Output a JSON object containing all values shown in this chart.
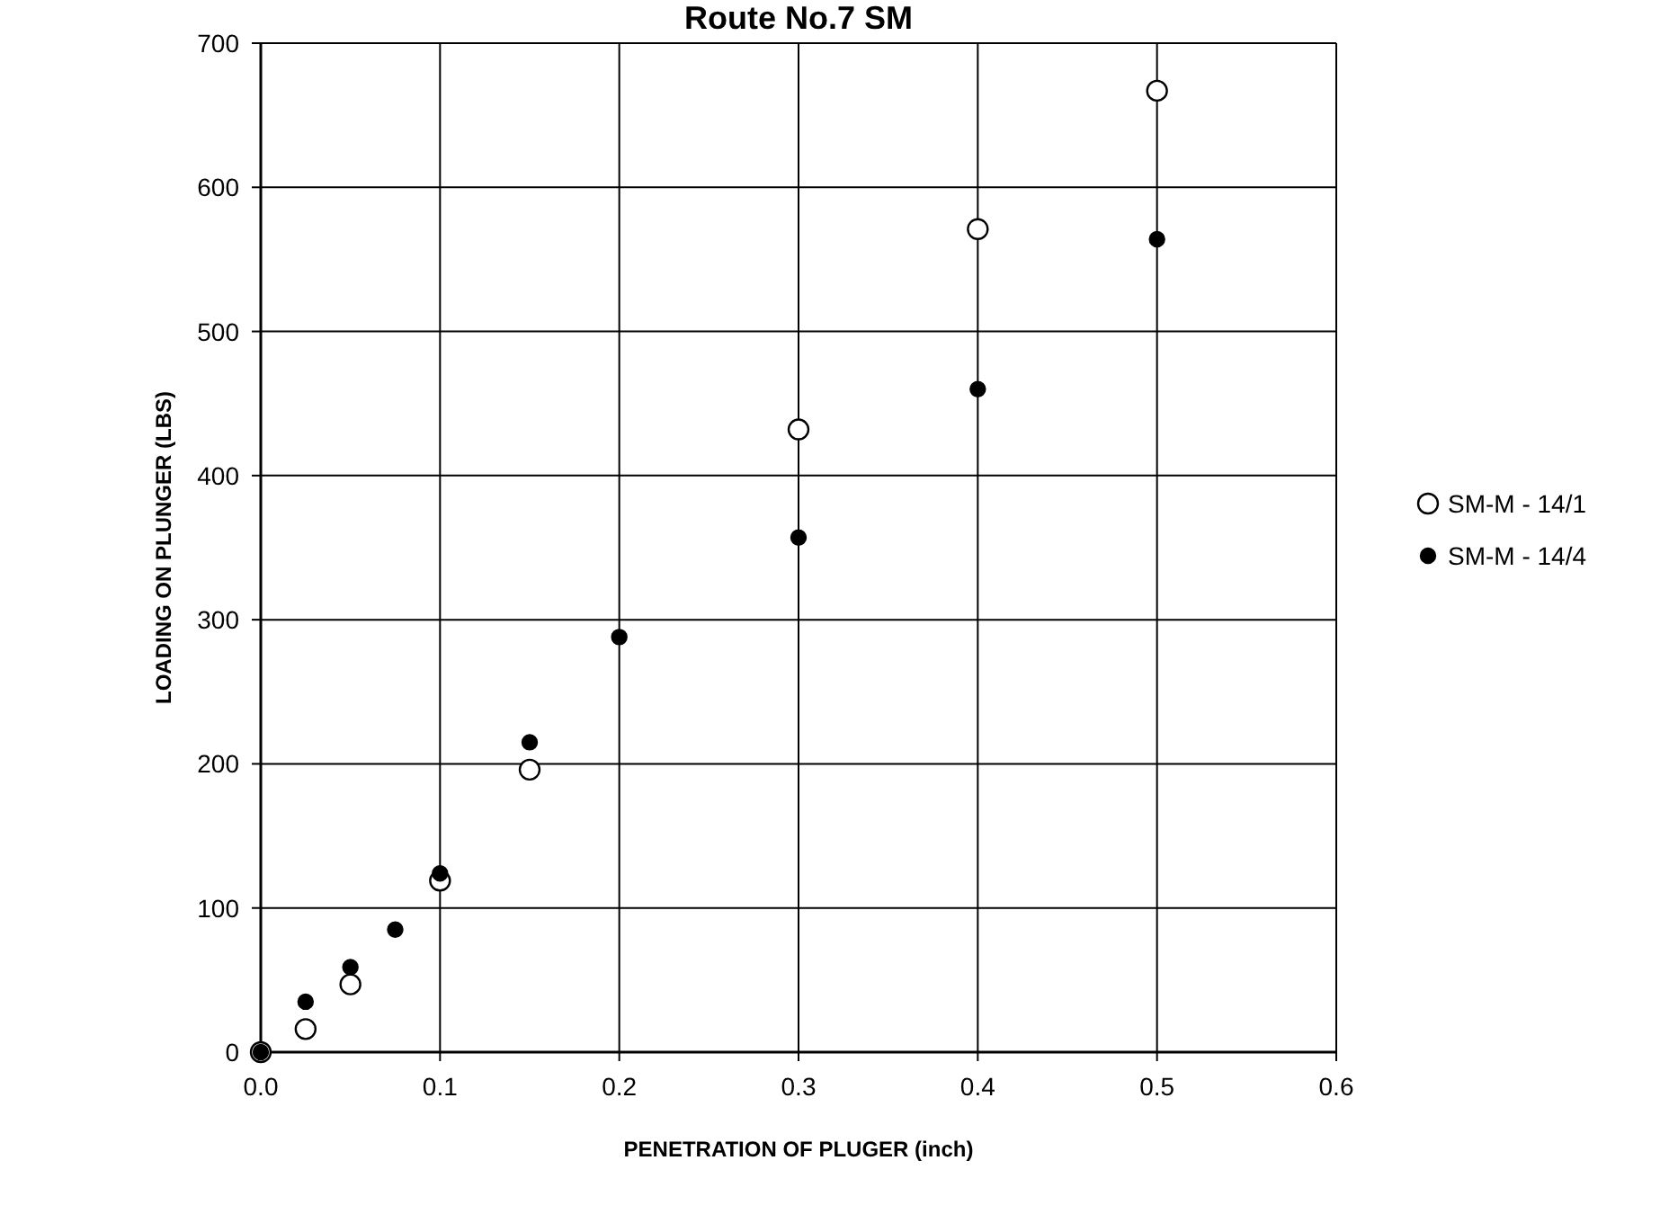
{
  "chart_data": {
    "type": "scatter",
    "title": "Route No.7 SM",
    "xlabel": "PENETRATION OF PLUGER (inch)",
    "ylabel": "LOADING ON PLUNGER (LBS)",
    "x": [
      0,
      0.025,
      0.05,
      0.075,
      0.1,
      0.15,
      0.2,
      0.3,
      0.4,
      0.5
    ],
    "series": [
      {
        "name": "SM-M - 14/1",
        "color": "#ffffff",
        "values": [
          0,
          16,
          47,
          null,
          119,
          196,
          null,
          432,
          571,
          667
        ]
      },
      {
        "name": "SM-M - 14/4",
        "color": "#000000",
        "values": [
          0,
          35,
          59,
          85,
          124,
          215,
          288,
          357,
          460,
          564
        ]
      }
    ],
    "xlim": [
      0,
      0.6
    ],
    "xticks": [
      {
        "value": 0,
        "label": "0.0"
      },
      {
        "value": 0.1,
        "label": "0.1"
      },
      {
        "value": 0.2,
        "label": "0.2"
      },
      {
        "value": 0.3,
        "label": "0.3"
      },
      {
        "value": 0.4,
        "label": "0.4"
      },
      {
        "value": 0.5,
        "label": "0.5"
      },
      {
        "value": 0.6,
        "label": "0.6"
      }
    ],
    "ylim": [
      0,
      700
    ],
    "yticks": [
      0,
      100,
      200,
      300,
      400,
      500,
      600,
      700
    ],
    "grid": true,
    "legend": "right",
    "marker": "circle"
  }
}
